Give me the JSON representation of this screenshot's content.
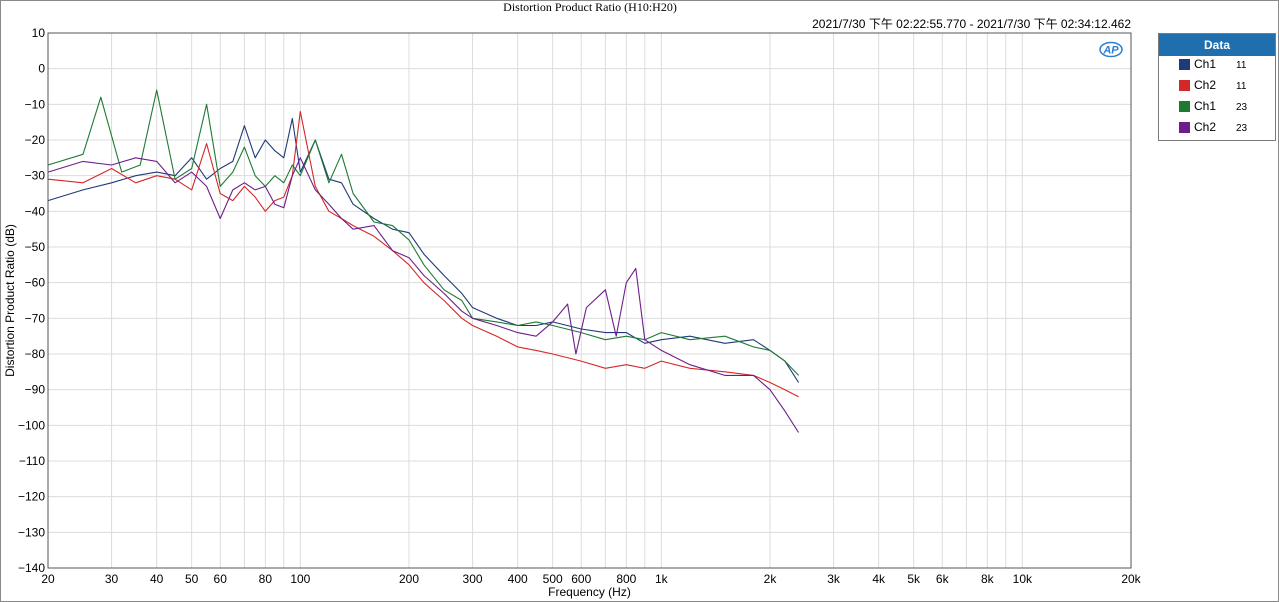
{
  "chart_data": {
    "type": "line",
    "title": "Distortion Product Ratio (H10:H20)",
    "timestamp": "2021/7/30 下午 02:22:55.770 - 2021/7/30 下午 02:34:12.462",
    "xlabel": "Frequency (Hz)",
    "ylabel": "Distortion Product Ratio (dB)",
    "x_scale": "log",
    "xlim": [
      20,
      20000
    ],
    "ylim": [
      -140,
      10
    ],
    "x_ticks": [
      20,
      30,
      40,
      50,
      60,
      80,
      100,
      200,
      300,
      400,
      500,
      600,
      800,
      1000,
      2000,
      3000,
      4000,
      5000,
      6000,
      8000,
      10000,
      20000
    ],
    "x_tick_labels": [
      "20",
      "30",
      "40",
      "50",
      "60",
      "80",
      "100",
      "200",
      "300",
      "400",
      "500",
      "600",
      "800",
      "1k",
      "2k",
      "3k",
      "4k",
      "5k",
      "6k",
      "8k",
      "10k",
      "20k"
    ],
    "y_ticks": [
      10,
      0,
      -10,
      -20,
      -30,
      -40,
      -50,
      -60,
      -70,
      -80,
      -90,
      -100,
      -110,
      -120,
      -130,
      -140
    ],
    "grid": true,
    "legend_position": "top-right",
    "legend_title": "Data",
    "series": [
      {
        "name": "Ch1",
        "sub": "11",
        "color": "#1f3a78",
        "x": [
          20,
          25,
          30,
          35,
          40,
          45,
          50,
          55,
          60,
          65,
          70,
          75,
          80,
          85,
          90,
          95,
          100,
          110,
          120,
          130,
          140,
          160,
          180,
          200,
          220,
          250,
          280,
          300,
          350,
          400,
          450,
          500,
          600,
          700,
          800,
          900,
          1000,
          1200,
          1500,
          1800,
          2000,
          2200,
          2400
        ],
        "y": [
          -37,
          -34,
          -32,
          -30,
          -29,
          -30,
          -25,
          -31,
          -28,
          -26,
          -16,
          -25,
          -20,
          -23,
          -25,
          -14,
          -29,
          -20,
          -31,
          -32,
          -38,
          -42,
          -45,
          -46,
          -52,
          -58,
          -63,
          -67,
          -70,
          -72,
          -72,
          -71,
          -73,
          -74,
          -74,
          -77,
          -76,
          -75,
          -77,
          -76,
          -79,
          -82,
          -88
        ]
      },
      {
        "name": "Ch2",
        "sub": "11",
        "color": "#d42828",
        "x": [
          20,
          25,
          30,
          35,
          40,
          45,
          50,
          55,
          60,
          65,
          70,
          75,
          80,
          85,
          90,
          95,
          100,
          110,
          120,
          130,
          140,
          160,
          180,
          200,
          220,
          250,
          280,
          300,
          350,
          400,
          450,
          500,
          600,
          700,
          800,
          900,
          1000,
          1200,
          1500,
          1800,
          2000,
          2200,
          2400
        ],
        "y": [
          -31,
          -32,
          -28,
          -32,
          -30,
          -31,
          -34,
          -21,
          -35,
          -37,
          -33,
          -36,
          -40,
          -37,
          -36,
          -30,
          -12,
          -33,
          -40,
          -42,
          -44,
          -47,
          -51,
          -55,
          -60,
          -65,
          -70,
          -72,
          -75,
          -78,
          -79,
          -80,
          -82,
          -84,
          -83,
          -84,
          -82,
          -84,
          -85,
          -86,
          -88,
          -90,
          -92
        ]
      },
      {
        "name": "Ch1",
        "sub": "23",
        "color": "#1e7a32",
        "x": [
          20,
          25,
          28,
          32,
          36,
          40,
          45,
          50,
          55,
          60,
          65,
          70,
          75,
          80,
          85,
          90,
          95,
          100,
          110,
          120,
          130,
          140,
          160,
          180,
          200,
          220,
          250,
          280,
          300,
          350,
          400,
          450,
          500,
          600,
          700,
          800,
          900,
          1000,
          1200,
          1500,
          1800,
          2000,
          2200,
          2400
        ],
        "y": [
          -27,
          -24,
          -8,
          -29,
          -27,
          -6,
          -31,
          -28,
          -10,
          -33,
          -29,
          -22,
          -30,
          -33,
          -30,
          -32,
          -27,
          -30,
          -20,
          -32,
          -24,
          -35,
          -43,
          -44,
          -48,
          -55,
          -62,
          -65,
          -70,
          -71,
          -72,
          -71,
          -72,
          -74,
          -76,
          -75,
          -76,
          -74,
          -76,
          -75,
          -78,
          -79,
          -82,
          -86
        ]
      },
      {
        "name": "Ch2",
        "sub": "23",
        "color": "#6e1e8c",
        "x": [
          20,
          25,
          30,
          35,
          40,
          45,
          50,
          55,
          60,
          65,
          70,
          75,
          80,
          85,
          90,
          95,
          100,
          110,
          120,
          130,
          140,
          160,
          180,
          200,
          220,
          250,
          280,
          300,
          350,
          400,
          450,
          500,
          550,
          580,
          620,
          700,
          750,
          800,
          850,
          900,
          1000,
          1200,
          1500,
          1800,
          2000,
          2200,
          2400
        ],
        "y": [
          -29,
          -26,
          -27,
          -25,
          -26,
          -32,
          -29,
          -33,
          -42,
          -34,
          -32,
          -34,
          -33,
          -38,
          -39,
          -30,
          -25,
          -34,
          -38,
          -42,
          -45,
          -44,
          -51,
          -53,
          -58,
          -63,
          -68,
          -70,
          -72,
          -74,
          -75,
          -71,
          -66,
          -80,
          -67,
          -62,
          -75,
          -60,
          -56,
          -76,
          -79,
          -83,
          -86,
          -86,
          -90,
          -96,
          -102
        ]
      }
    ]
  },
  "legend_icon": "ap-logo-icon"
}
